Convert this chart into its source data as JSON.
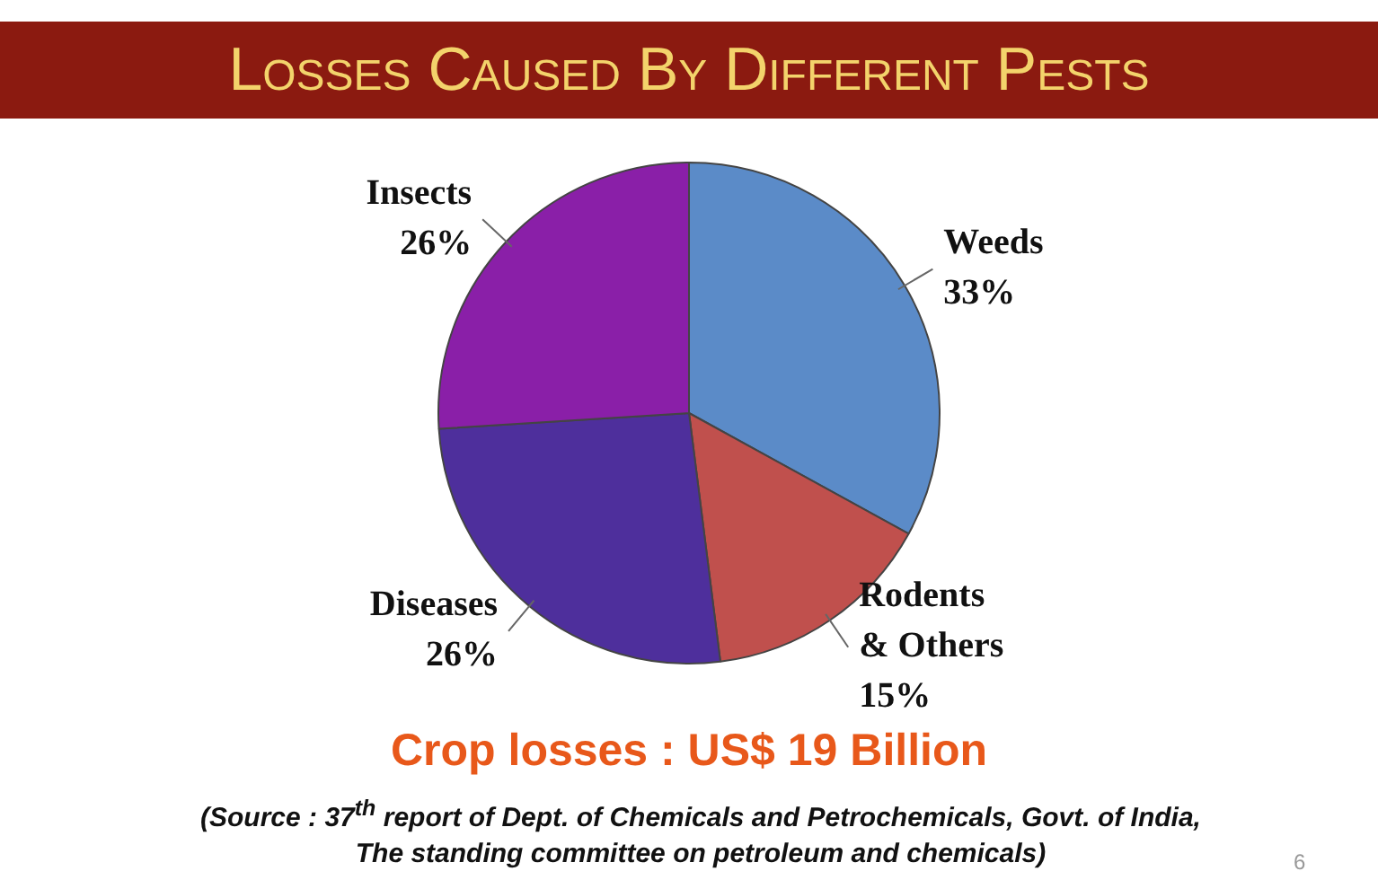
{
  "chart_data": {
    "type": "pie",
    "title": "Losses Caused By Different Pests",
    "categories": [
      "Weeds",
      "Rodents\n& Others",
      "Diseases",
      "Insects"
    ],
    "values": [
      33,
      15,
      26,
      26
    ],
    "value_labels": [
      "33%",
      "15%",
      "26%",
      "26%"
    ],
    "colors": [
      "#5b8bc8",
      "#c0504d",
      "#4e2f9c",
      "#8a1fa8"
    ],
    "legend": false,
    "annotations": [
      "Crop losses : US$ 19 Billion",
      "(Source : 37$^{th}$ report of Dept. of Chemicals and Petrochemicals, Govt. of India, The standing committee on petroleum and chemicals)",
      "6"
    ]
  }
}
